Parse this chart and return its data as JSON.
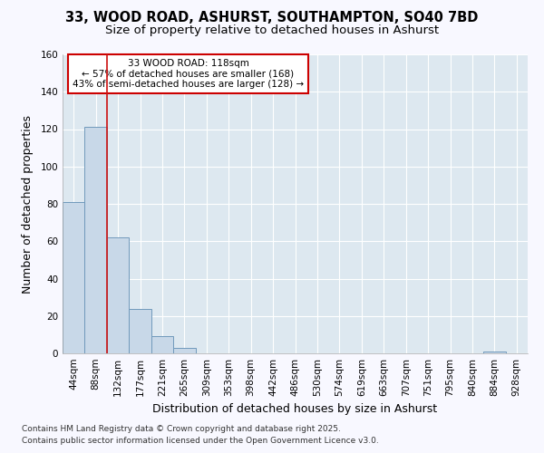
{
  "title_line1": "33, WOOD ROAD, ASHURST, SOUTHAMPTON, SO40 7BD",
  "title_line2": "Size of property relative to detached houses in Ashurst",
  "xlabel": "Distribution of detached houses by size in Ashurst",
  "ylabel": "Number of detached properties",
  "categories": [
    "44sqm",
    "88sqm",
    "132sqm",
    "177sqm",
    "221sqm",
    "265sqm",
    "309sqm",
    "353sqm",
    "398sqm",
    "442sqm",
    "486sqm",
    "530sqm",
    "574sqm",
    "619sqm",
    "663sqm",
    "707sqm",
    "751sqm",
    "795sqm",
    "840sqm",
    "884sqm",
    "928sqm"
  ],
  "values": [
    81,
    121,
    62,
    24,
    9,
    3,
    0,
    0,
    0,
    0,
    0,
    0,
    0,
    0,
    0,
    0,
    0,
    0,
    0,
    1,
    0
  ],
  "bar_color": "#c8d8e8",
  "bar_edge_color": "#7099bb",
  "vline_x_index": 1.5,
  "vline_color": "#cc1111",
  "ylim": [
    0,
    160
  ],
  "yticks": [
    0,
    20,
    40,
    60,
    80,
    100,
    120,
    140,
    160
  ],
  "annotation_text": "33 WOOD ROAD: 118sqm\n← 57% of detached houses are smaller (168)\n43% of semi-detached houses are larger (128) →",
  "box_edge_color": "#cc0000",
  "footer_line1": "Contains HM Land Registry data © Crown copyright and database right 2025.",
  "footer_line2": "Contains public sector information licensed under the Open Government Licence v3.0.",
  "fig_bg_color": "#f8f8ff",
  "plot_bg_color": "#dde8f0",
  "grid_color": "#ffffff",
  "title1_fontsize": 10.5,
  "title2_fontsize": 9.5,
  "axis_label_fontsize": 9,
  "tick_fontsize": 7.5,
  "footer_fontsize": 6.5,
  "annot_fontsize": 7.5
}
